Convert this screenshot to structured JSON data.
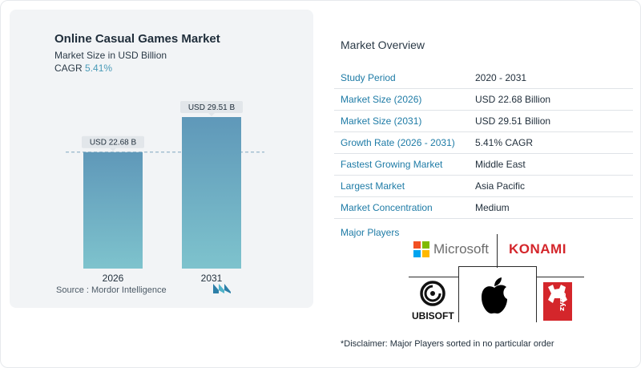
{
  "chart_data": {
    "type": "bar",
    "title": "Online Casual Games Market",
    "subtitle": "Market Size in USD Billion",
    "cagr_label": "CAGR",
    "cagr_value": "5.41%",
    "categories": [
      "2026",
      "2031"
    ],
    "values": [
      22.68,
      29.51
    ],
    "data_labels": [
      "USD 22.68 B",
      "USD 29.51 B"
    ],
    "bar_color_top": "#5f98b9",
    "bar_color_bottom": "#7ec3cd",
    "dashed_reference_value": 22.68,
    "ylim": [
      0,
      29.51
    ]
  },
  "source": "Source :  Mordor Intelligence",
  "overview": {
    "title": "Market Overview",
    "rows": [
      {
        "key": "Study Period",
        "value": "2020 - 2031"
      },
      {
        "key": "Market Size (2026)",
        "value": "USD 22.68 Billion"
      },
      {
        "key": "Market Size (2031)",
        "value": "USD 29.51 Billion"
      },
      {
        "key": "Growth Rate (2026 - 2031)",
        "value": "5.41% CAGR"
      },
      {
        "key": "Fastest Growing Market",
        "value": "Middle East"
      },
      {
        "key": "Largest Market",
        "value": "Asia Pacific"
      },
      {
        "key": "Market Concentration",
        "value": "Medium"
      }
    ]
  },
  "players": {
    "label": "Major Players",
    "microsoft": "Microsoft",
    "konami": "KONAMI",
    "ubisoft": "UBISOFT",
    "zynga": "zynga"
  },
  "disclaimer": "*Disclaimer: Major Players sorted in no particular order",
  "colors": {
    "accent": "#1e7ba6",
    "konami_red": "#d4262b",
    "zynga_red": "#d4262b"
  }
}
